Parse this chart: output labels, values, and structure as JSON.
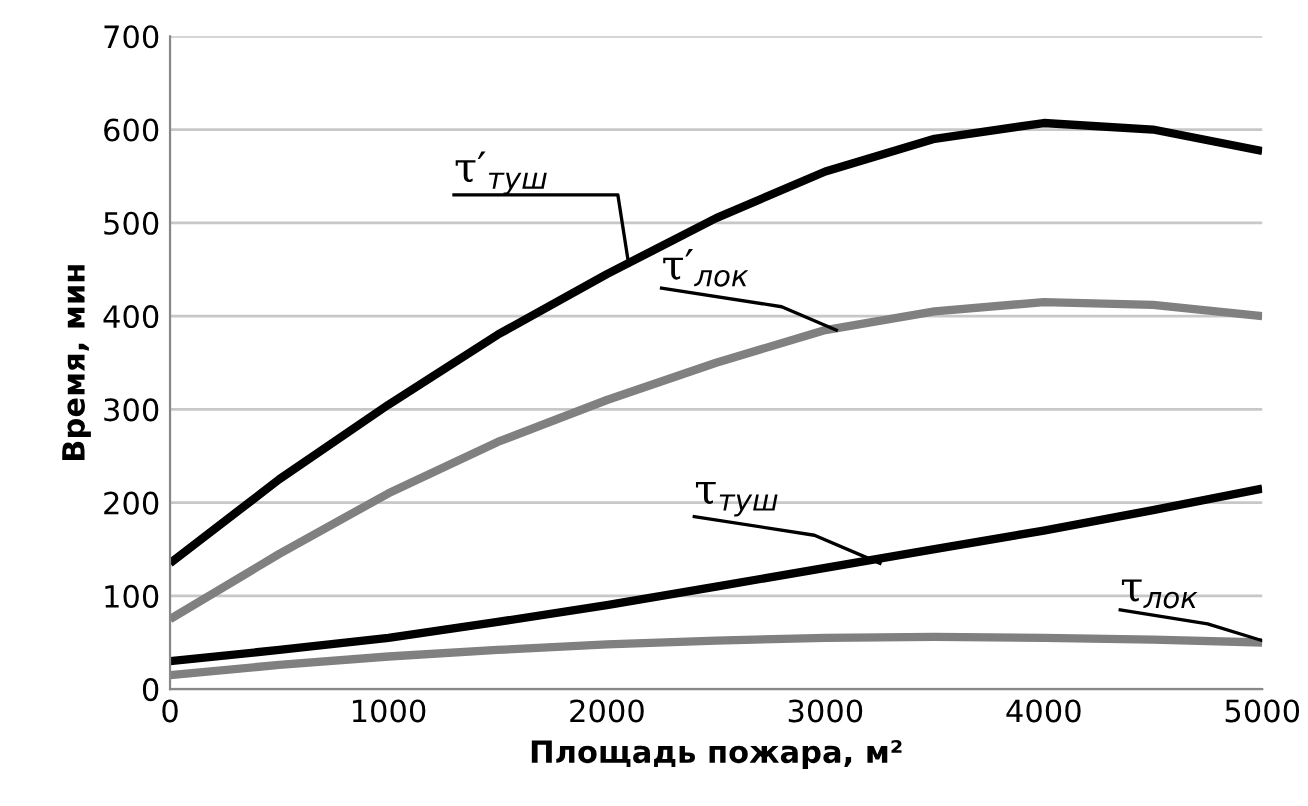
{
  "chart_data": {
    "type": "line",
    "xlabel": "Площадь пожара, м²",
    "ylabel": "Время, мин",
    "x": [
      0,
      500,
      1000,
      1500,
      2000,
      2500,
      3000,
      3500,
      4000,
      4500,
      5000
    ],
    "series": [
      {
        "name": "τ′$_{туш}$",
        "color": "#000000",
        "values": [
          135,
          225,
          305,
          380,
          445,
          505,
          555,
          590,
          607,
          600,
          577
        ]
      },
      {
        "name": "τ′$_{лок}$",
        "color": "#808080",
        "values": [
          75,
          145,
          210,
          265,
          310,
          350,
          385,
          405,
          415,
          412,
          400
        ]
      },
      {
        "name": "τ$_{туш}$",
        "color": "#000000",
        "values": [
          30,
          42,
          55,
          72,
          90,
          110,
          130,
          150,
          170,
          192,
          215
        ]
      },
      {
        "name": "τ$_{лок}$",
        "color": "#808080",
        "values": [
          15,
          26,
          35,
          42,
          48,
          52,
          55,
          56,
          55,
          53,
          50
        ]
      }
    ],
    "xlim": [
      0,
      5000
    ],
    "ylim": [
      0,
      700
    ],
    "xticks": [
      0,
      1000,
      2000,
      3000,
      4000,
      5000
    ],
    "yticks": [
      0,
      100,
      200,
      300,
      400,
      500,
      600,
      700
    ],
    "grid": "y",
    "legend": false,
    "marker": "none",
    "line_style": "solid"
  }
}
